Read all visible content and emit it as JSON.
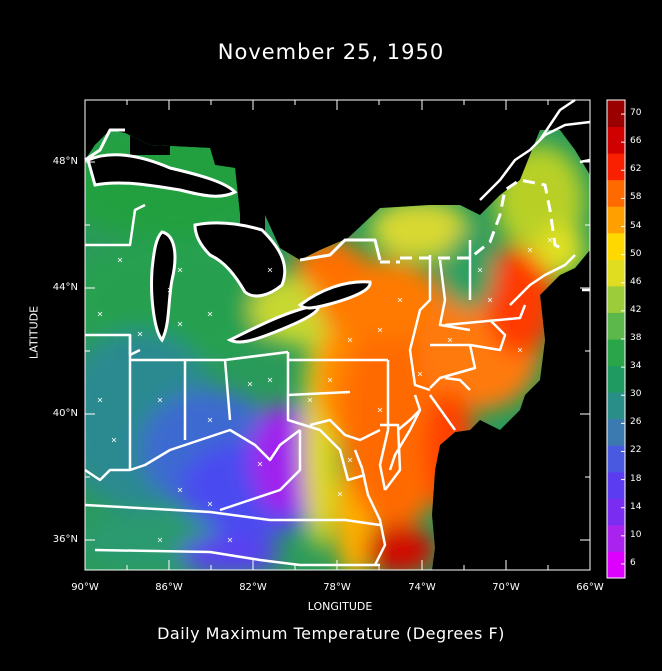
{
  "title": "November 25, 1950",
  "subtitle": "Daily Maximum Temperature (Degrees F)",
  "chart_data": {
    "type": "heatmap",
    "xlabel": "LONGITUDE",
    "ylabel": "LATITUDE",
    "x_ticks": [
      "90°W",
      "86°W",
      "82°W",
      "78°W",
      "74°W",
      "70°W",
      "66°W"
    ],
    "x_tick_values": [
      -90,
      -86,
      -82,
      -78,
      -74,
      -70,
      -66
    ],
    "y_ticks": [
      "36°N",
      "40°N",
      "44°N",
      "48°N"
    ],
    "y_tick_values": [
      36,
      40,
      44,
      48
    ],
    "xlim": [
      -90,
      -66
    ],
    "ylim": [
      35,
      50
    ],
    "colorbar_ticks": [
      "6",
      "10",
      "14",
      "18",
      "22",
      "26",
      "30",
      "34",
      "38",
      "42",
      "46",
      "50",
      "54",
      "58",
      "62",
      "66",
      "70"
    ],
    "colorbar_values": [
      6,
      10,
      14,
      18,
      22,
      26,
      30,
      34,
      38,
      42,
      46,
      50,
      54,
      58,
      62,
      66,
      70
    ],
    "colorbar_range": [
      4,
      72
    ],
    "colorbar_colors": [
      "#dd00ff",
      "#aa22ee",
      "#7a2cf0",
      "#5c3cf0",
      "#4a5ae0",
      "#3a7ab0",
      "#2a8e88",
      "#1f9a60",
      "#2aa54a",
      "#5cb84a",
      "#9ccc3a",
      "#e0dc20",
      "#ffd800",
      "#ffa000",
      "#ff6a00",
      "#f82000",
      "#d00000",
      "#9a0000"
    ]
  }
}
